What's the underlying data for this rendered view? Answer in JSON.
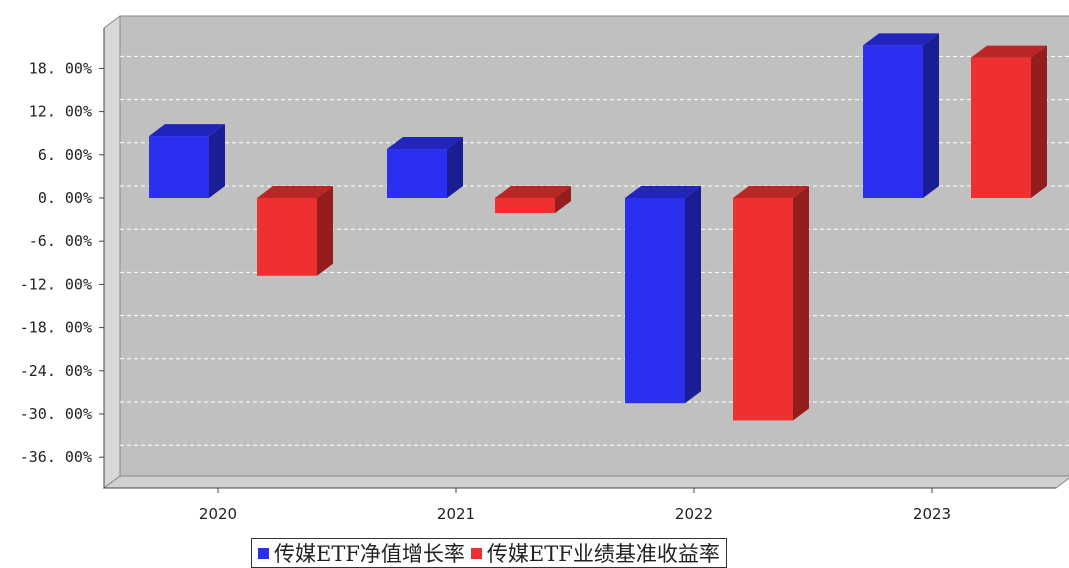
{
  "chart_data": {
    "type": "bar",
    "categories": [
      "2020",
      "2021",
      "2022",
      "2023"
    ],
    "series": [
      {
        "name": "传媒ETF净值增长率",
        "values": [
          8.6,
          6.8,
          -28.5,
          21.2
        ],
        "color": "#2b2ff0"
      },
      {
        "name": "传媒ETF业绩基准收益率",
        "values": [
          -10.8,
          -2.1,
          -30.9,
          19.5
        ],
        "color": "#ee3030"
      }
    ],
    "yticks": [
      "18.00%",
      "12.00%",
      "6.00%",
      "0.00%",
      "-6.00%",
      "-12.00%",
      "-18.00%",
      "-24.00%",
      "-30.00%",
      "-36.00%"
    ],
    "ylim": [
      -40,
      24
    ],
    "grid": true,
    "legend_position": "bottom",
    "title": "",
    "xlabel": "",
    "ylabel": ""
  }
}
